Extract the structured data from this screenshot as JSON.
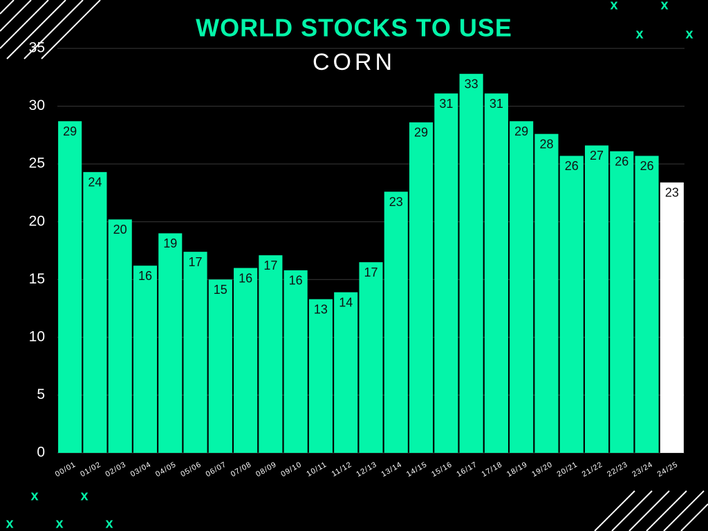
{
  "chart_data": {
    "type": "bar",
    "title": "WORLD STOCKS TO USE",
    "subtitle": "CORN",
    "categories": [
      "00/01",
      "01/02",
      "02/03",
      "03/04",
      "04/05",
      "05/06",
      "06/07",
      "07/08",
      "08/09",
      "09/10",
      "10/11",
      "11/12",
      "12/13",
      "13/14",
      "14/15",
      "15/16",
      "16/17",
      "17/18",
      "18/19",
      "19/20",
      "20/21",
      "21/22",
      "22/23",
      "23/24",
      "24/25"
    ],
    "values": [
      28.7,
      24.3,
      20.2,
      16.2,
      19.0,
      17.4,
      15.0,
      16.0,
      17.1,
      15.8,
      13.3,
      13.9,
      16.5,
      22.6,
      28.6,
      31.1,
      32.8,
      31.1,
      28.7,
      27.6,
      25.7,
      26.6,
      26.1,
      25.7,
      23.4
    ],
    "value_labels": [
      "29",
      "24",
      "20",
      "16",
      "19",
      "17",
      "15",
      "16",
      "17",
      "16",
      "13",
      "14",
      "17",
      "23",
      "29",
      "31",
      "33",
      "31",
      "29",
      "28",
      "26",
      "27",
      "26",
      "26",
      "23"
    ],
    "colors": [
      "#04f5a9",
      "#04f5a9",
      "#04f5a9",
      "#04f5a9",
      "#04f5a9",
      "#04f5a9",
      "#04f5a9",
      "#04f5a9",
      "#04f5a9",
      "#04f5a9",
      "#04f5a9",
      "#04f5a9",
      "#04f5a9",
      "#04f5a9",
      "#04f5a9",
      "#04f5a9",
      "#04f5a9",
      "#04f5a9",
      "#04f5a9",
      "#04f5a9",
      "#04f5a9",
      "#04f5a9",
      "#04f5a9",
      "#04f5a9",
      "#ffffff"
    ],
    "ylim": [
      0,
      35
    ],
    "yticks": [
      0,
      5,
      10,
      15,
      20,
      25,
      30,
      35
    ],
    "grid": true,
    "decor_text": "x"
  }
}
